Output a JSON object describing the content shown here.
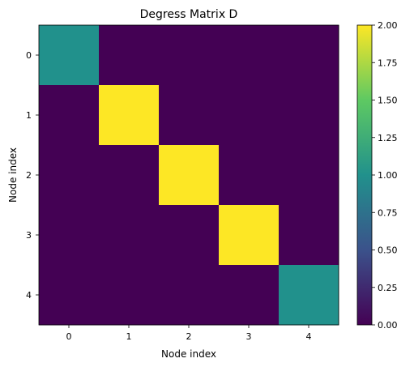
{
  "chart_data": {
    "type": "heatmap",
    "title": "Degress Matrix D",
    "xlabel": "Node index",
    "ylabel": "Node index",
    "x_categories": [
      "0",
      "1",
      "2",
      "3",
      "4"
    ],
    "y_categories": [
      "0",
      "1",
      "2",
      "3",
      "4"
    ],
    "values": [
      [
        1,
        0,
        0,
        0,
        0
      ],
      [
        0,
        2,
        0,
        0,
        0
      ],
      [
        0,
        0,
        2,
        0,
        0
      ],
      [
        0,
        0,
        0,
        2,
        0
      ],
      [
        0,
        0,
        0,
        0,
        1
      ]
    ],
    "colormap": "viridis",
    "colormap_stops": [
      "#440154",
      "#3b528b",
      "#21918c",
      "#5ec962",
      "#fde725"
    ],
    "colorbar": {
      "range": [
        0,
        2
      ],
      "ticks": [
        "0.00",
        "0.25",
        "0.50",
        "0.75",
        "1.00",
        "1.25",
        "1.50",
        "1.75",
        "2.00"
      ]
    }
  }
}
